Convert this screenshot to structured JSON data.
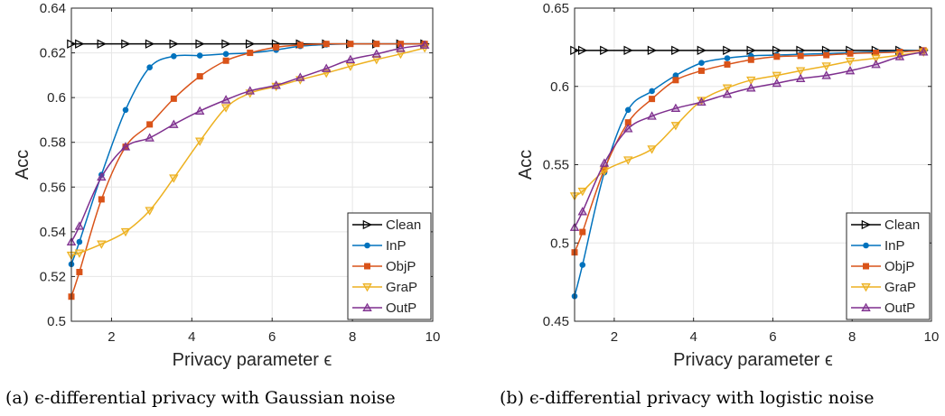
{
  "colors": {
    "Clean": "#000000",
    "InP": "#0072BD",
    "ObjP": "#D95319",
    "GraP": "#EDB120",
    "OutP": "#7E2F8E",
    "axis": "#262626",
    "grid": "#e6e6e6"
  },
  "chart_data": [
    {
      "type": "line",
      "xlabel": "Privacy parameter ϵ",
      "ylabel": "Acc",
      "caption": "(a) ϵ-differential privacy with Gaussian noise",
      "xlim": [
        1,
        10
      ],
      "ylim": [
        0.5,
        0.64
      ],
      "xticks": [
        2,
        4,
        6,
        8,
        10
      ],
      "xtick_labels": [
        "2",
        "4",
        "6",
        "8",
        "10"
      ],
      "yticks": [
        0.5,
        0.52,
        0.54,
        0.56,
        0.58,
        0.6,
        0.62,
        0.64
      ],
      "ytick_labels": [
        "0.5",
        "0.52",
        "0.54",
        "0.56",
        "0.58",
        "0.6",
        "0.62",
        "0.64"
      ],
      "grid": true,
      "legend_position": "bottom-right",
      "x": [
        1,
        1.2,
        1.75,
        2.35,
        2.95,
        3.55,
        4.2,
        4.85,
        5.45,
        6.1,
        6.7,
        7.35,
        7.95,
        8.6,
        9.2,
        9.8
      ],
      "series": [
        {
          "name": "Clean",
          "marker": "triangle-right",
          "values": [
            0.624,
            0.624,
            0.624,
            0.624,
            0.624,
            0.624,
            0.624,
            0.624,
            0.624,
            0.624,
            0.624,
            0.624,
            0.624,
            0.624,
            0.624,
            0.624
          ]
        },
        {
          "name": "InP",
          "marker": "circle",
          "values": [
            0.5255,
            0.5355,
            0.5655,
            0.5945,
            0.6135,
            0.6185,
            0.6188,
            0.6195,
            0.62,
            0.6213,
            0.623,
            0.6237,
            0.624,
            0.624,
            0.624,
            0.624
          ]
        },
        {
          "name": "ObjP",
          "marker": "square",
          "values": [
            0.511,
            0.522,
            0.5545,
            0.578,
            0.588,
            0.5995,
            0.6095,
            0.6165,
            0.62,
            0.6225,
            0.6235,
            0.624,
            0.624,
            0.624,
            0.624,
            0.624
          ]
        },
        {
          "name": "GraP",
          "marker": "triangle-down",
          "values": [
            0.5295,
            0.5305,
            0.5345,
            0.54,
            0.5495,
            0.564,
            0.5805,
            0.5955,
            0.602,
            0.605,
            0.608,
            0.611,
            0.614,
            0.617,
            0.6195,
            0.6222
          ]
        },
        {
          "name": "OutP",
          "marker": "triangle-up",
          "values": [
            0.5355,
            0.5425,
            0.5645,
            0.578,
            0.582,
            0.588,
            0.594,
            0.599,
            0.603,
            0.6055,
            0.609,
            0.613,
            0.617,
            0.6195,
            0.622,
            0.6235
          ]
        }
      ]
    },
    {
      "type": "line",
      "xlabel": "Privacy parameter ϵ",
      "ylabel": "Acc",
      "caption": "(b) ϵ-differential privacy with logistic noise",
      "xlim": [
        1,
        10
      ],
      "ylim": [
        0.45,
        0.65
      ],
      "xticks": [
        2,
        4,
        6,
        8,
        10
      ],
      "xtick_labels": [
        "2",
        "4",
        "6",
        "8",
        "10"
      ],
      "yticks": [
        0.45,
        0.5,
        0.55,
        0.6,
        0.65
      ],
      "ytick_labels": [
        "0.45",
        "0.5",
        "0.55",
        "0.6",
        "0.65"
      ],
      "grid": true,
      "legend_position": "bottom-right",
      "x": [
        1,
        1.2,
        1.75,
        2.35,
        2.95,
        3.55,
        4.2,
        4.85,
        5.45,
        6.1,
        6.7,
        7.35,
        7.95,
        8.6,
        9.2,
        9.8
      ],
      "series": [
        {
          "name": "Clean",
          "marker": "triangle-right",
          "values": [
            0.623,
            0.623,
            0.623,
            0.623,
            0.623,
            0.623,
            0.623,
            0.623,
            0.623,
            0.623,
            0.623,
            0.623,
            0.623,
            0.623,
            0.623,
            0.623
          ]
        },
        {
          "name": "InP",
          "marker": "circle",
          "values": [
            0.466,
            0.486,
            0.545,
            0.585,
            0.597,
            0.607,
            0.615,
            0.618,
            0.6195,
            0.62,
            0.6205,
            0.621,
            0.6215,
            0.622,
            0.6225,
            0.623
          ]
        },
        {
          "name": "ObjP",
          "marker": "square",
          "values": [
            0.494,
            0.507,
            0.547,
            0.577,
            0.592,
            0.604,
            0.61,
            0.614,
            0.617,
            0.619,
            0.6195,
            0.62,
            0.621,
            0.6215,
            0.622,
            0.623
          ]
        },
        {
          "name": "GraP",
          "marker": "triangle-down",
          "values": [
            0.53,
            0.533,
            0.546,
            0.553,
            0.56,
            0.575,
            0.591,
            0.599,
            0.604,
            0.607,
            0.61,
            0.613,
            0.616,
            0.618,
            0.62,
            0.622
          ]
        },
        {
          "name": "OutP",
          "marker": "triangle-up",
          "values": [
            0.51,
            0.52,
            0.551,
            0.573,
            0.581,
            0.586,
            0.59,
            0.595,
            0.599,
            0.602,
            0.605,
            0.607,
            0.61,
            0.614,
            0.619,
            0.622
          ]
        }
      ]
    }
  ]
}
